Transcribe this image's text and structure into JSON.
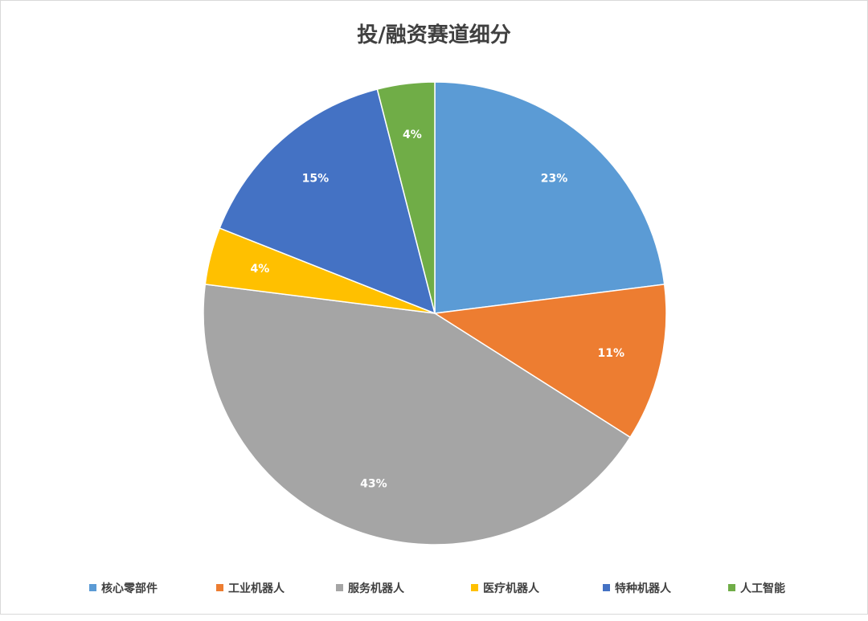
{
  "chart_data": {
    "type": "pie",
    "title": "投/融资赛道细分",
    "categories": [
      "核心零部件",
      "工业机器人",
      "服务机器人",
      "医疗机器人",
      "特种机器人",
      "人工智能"
    ],
    "values": [
      23,
      11,
      43,
      4,
      15,
      4
    ],
    "value_labels": [
      "23%",
      "11%",
      "43%",
      "4%",
      "15%",
      "4%"
    ],
    "colors": [
      "#5b9bd5",
      "#ed7d31",
      "#a5a5a5",
      "#ffc000",
      "#4472c4",
      "#70ad47"
    ],
    "start_angle": "12 o'clock",
    "direction": "clockwise",
    "legend_position": "bottom"
  }
}
